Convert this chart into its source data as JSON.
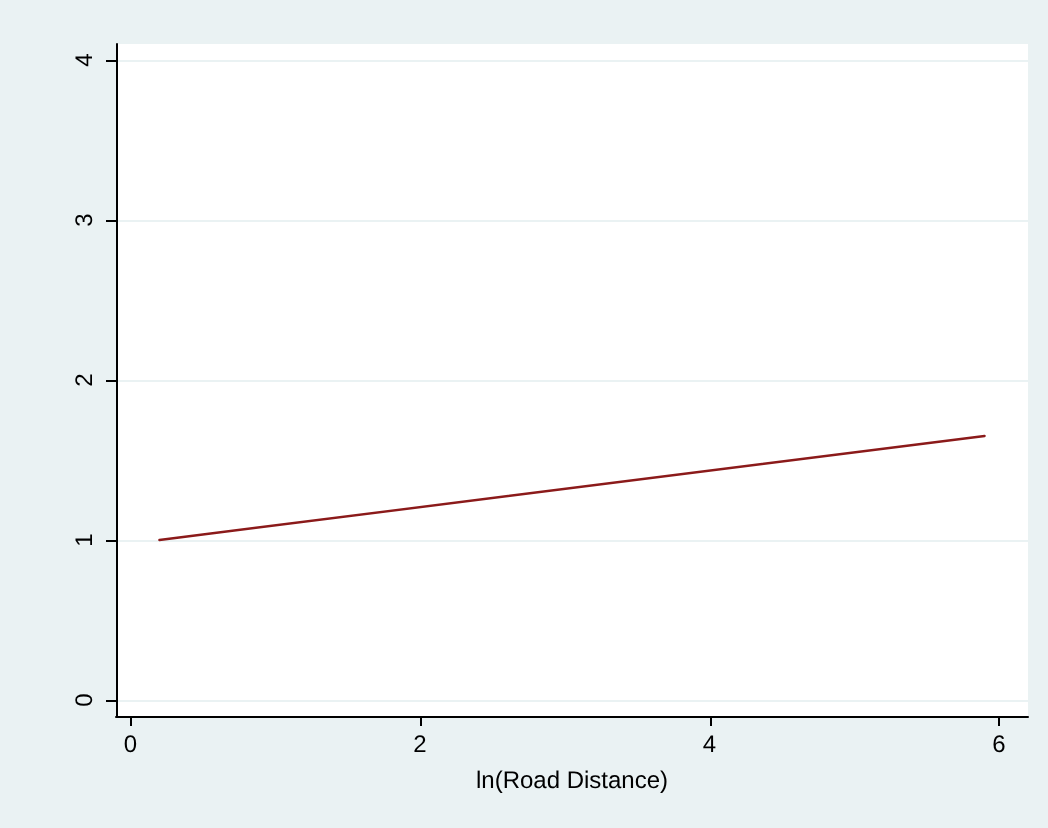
{
  "chart_data": {
    "type": "line",
    "xlabel": "ln(Road Distance)",
    "x": [
      0.2,
      5.9
    ],
    "series": [
      {
        "color": "#8b1a1a",
        "values": [
          1.0,
          1.65
        ]
      }
    ],
    "xlim": [
      -0.1,
      6.2
    ],
    "xticks": [
      0,
      2,
      4,
      6
    ],
    "ylim": [
      -0.1,
      4.1
    ],
    "yticks": [
      0,
      1,
      2,
      3,
      4
    ],
    "grid": "y",
    "marker": "none",
    "line_style": "solid"
  }
}
